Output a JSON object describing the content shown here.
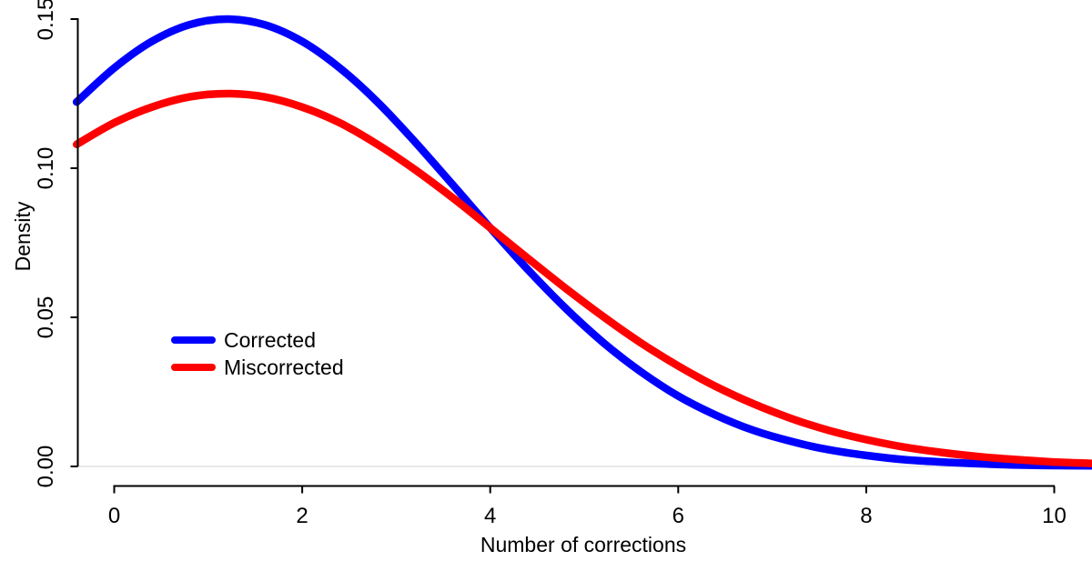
{
  "figure": {
    "background": "#ffffff",
    "colors": {
      "corrected": "#0000ff",
      "miscorrected": "#ff0000",
      "axis": "#000000",
      "text": "#000000",
      "baseline": "#e8e8e8"
    },
    "x_axis": {
      "label": "Number of corrections",
      "tick_labels": [
        "0",
        "2",
        "4",
        "6",
        "8",
        "10"
      ],
      "tick_values": [
        0,
        2,
        4,
        6,
        8,
        10
      ]
    },
    "y_axis": {
      "label": "Density",
      "tick_labels": [
        "0.00",
        "0.05",
        "0.10",
        "0.15"
      ],
      "tick_values": [
        0,
        0.05,
        0.1,
        0.15
      ]
    },
    "legend": {
      "items": [
        {
          "label": "Corrected",
          "color": "#0000ff"
        },
        {
          "label": "Miscorrected",
          "color": "#ff0000"
        }
      ]
    }
  },
  "chart_data": {
    "type": "line",
    "title": "",
    "xlabel": "Number of corrections",
    "ylabel": "Density",
    "xlim": [
      -0.4,
      10.4
    ],
    "ylim": [
      0,
      0.155
    ],
    "grid": false,
    "legend_position": "left-center",
    "baseline_y": 0,
    "x": [
      -0.4,
      0,
      0.4,
      0.8,
      1.2,
      1.6,
      2,
      2.4,
      2.8,
      3.2,
      3.6,
      4,
      4.4,
      4.8,
      5.2,
      5.6,
      6,
      6.4,
      6.8,
      7.2,
      7.6,
      8,
      8.4,
      8.8,
      9.2,
      9.6,
      10,
      10.4
    ],
    "series": [
      {
        "name": "Corrected",
        "color": "#0000ff",
        "peak": {
          "x": 1.2,
          "density": 0.15
        },
        "values": [
          0.1222,
          0.1336,
          0.1425,
          0.1481,
          0.15,
          0.1481,
          0.1425,
          0.1336,
          0.1222,
          0.1088,
          0.0945,
          0.08,
          0.066,
          0.0531,
          0.0416,
          0.0318,
          0.0236,
          0.0172,
          0.0121,
          0.0084,
          0.0056,
          0.0037,
          0.0023,
          0.0015,
          0.0009,
          0.0005,
          0.0003,
          0.0002
        ]
      },
      {
        "name": "Miscorrected",
        "color": "#ff0000",
        "peak": {
          "x": 1.2,
          "density": 0.125
        },
        "values": [
          0.108,
          0.1152,
          0.1205,
          0.1239,
          0.125,
          0.1239,
          0.1205,
          0.1152,
          0.108,
          0.0995,
          0.0901,
          0.08,
          0.0698,
          0.0598,
          0.0503,
          0.0415,
          0.0337,
          0.0268,
          0.021,
          0.0161,
          0.0121,
          0.009,
          0.0065,
          0.0047,
          0.0033,
          0.0023,
          0.0015,
          0.001
        ]
      }
    ],
    "crossing_point": {
      "x": 4.0,
      "density": 0.08
    }
  }
}
